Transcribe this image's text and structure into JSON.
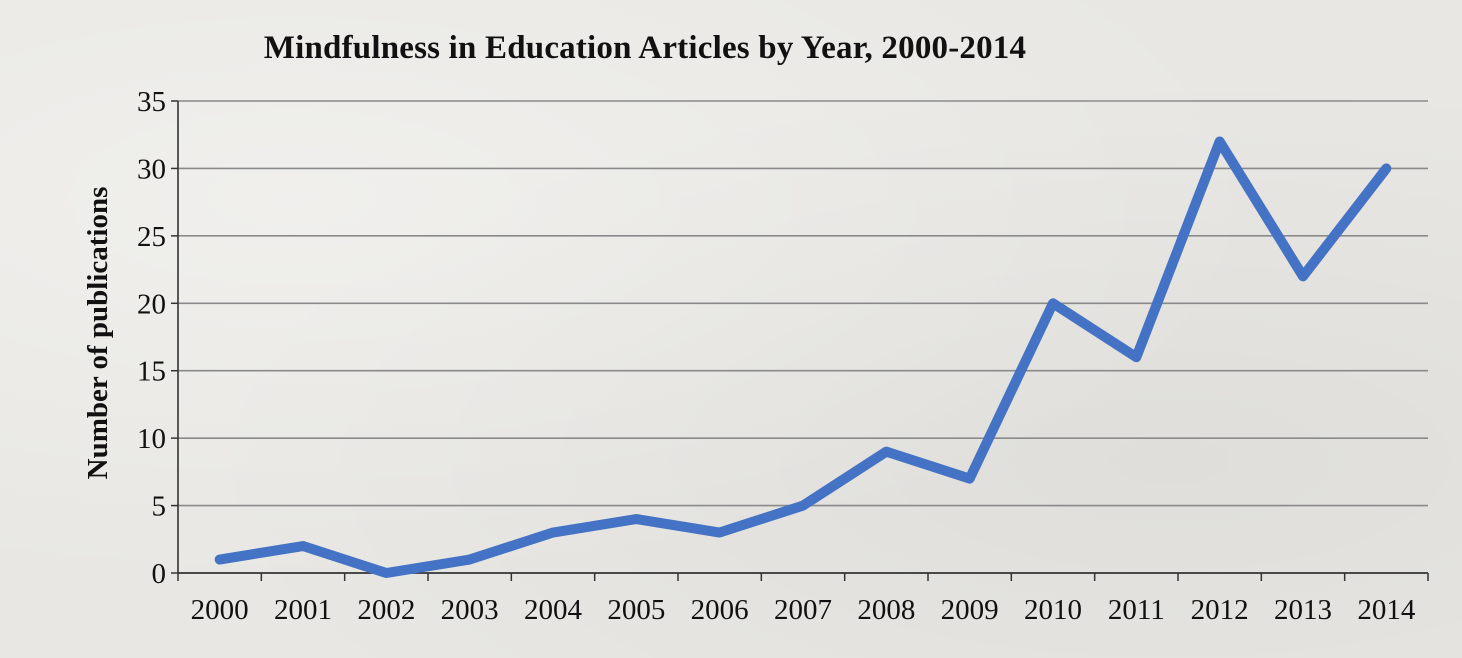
{
  "chart_data": {
    "type": "line",
    "title": "Mindfulness in Education Articles by Year, 2000-2014",
    "xlabel": "",
    "ylabel": "Number of publications",
    "categories": [
      "2000",
      "2001",
      "2002",
      "2003",
      "2004",
      "2005",
      "2006",
      "2007",
      "2008",
      "2009",
      "2010",
      "2011",
      "2012",
      "2013",
      "2014"
    ],
    "series": [
      {
        "values": [
          1,
          2,
          0,
          1,
          3,
          4,
          3,
          5,
          9,
          7,
          20,
          16,
          32,
          22,
          30
        ]
      }
    ],
    "ylim": [
      0,
      35
    ],
    "yticks": [
      "0",
      "5",
      "10",
      "15",
      "20",
      "25",
      "30",
      "35"
    ],
    "grid": true,
    "line_color": "#4472c4"
  }
}
